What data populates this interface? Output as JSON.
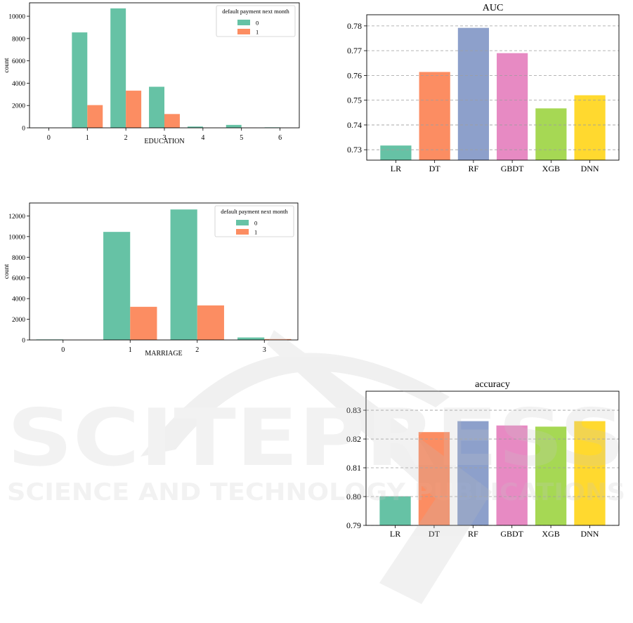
{
  "watermark": {
    "name": "SCITEPRESS",
    "tagline": "SCIENCE AND TECHNOLOGY PUBLICATIONS"
  },
  "chart_data": [
    {
      "id": "education",
      "type": "bar",
      "title": "",
      "xlabel": "EDUCATION",
      "ylabel": "count",
      "categories": [
        "0",
        "1",
        "2",
        "3",
        "4",
        "5",
        "6"
      ],
      "series": [
        {
          "name": "0",
          "color": "#66c2a5",
          "values": [
            14,
            8549,
            10700,
            3680,
            116,
            262,
            43
          ]
        },
        {
          "name": "1",
          "color": "#fc8d62",
          "values": [
            0,
            2036,
            3330,
            1237,
            7,
            18,
            8
          ]
        }
      ],
      "ylim": [
        0,
        11200
      ],
      "yticks": [
        0,
        2000,
        4000,
        6000,
        8000,
        10000
      ],
      "legend": {
        "title": "default payment next month",
        "placement": "top-right"
      }
    },
    {
      "id": "marriage",
      "type": "bar",
      "title": "",
      "xlabel": "MARRIAGE",
      "ylabel": "count",
      "categories": [
        "0",
        "1",
        "2",
        "3"
      ],
      "series": [
        {
          "name": "0",
          "color": "#66c2a5",
          "values": [
            49,
            10453,
            12623,
            239
          ]
        },
        {
          "name": "1",
          "color": "#fc8d62",
          "values": [
            5,
            3206,
            3341,
            84
          ]
        }
      ],
      "ylim": [
        0,
        13250
      ],
      "yticks": [
        0,
        2000,
        4000,
        6000,
        8000,
        10000,
        12000
      ],
      "legend": {
        "title": "default payment next month",
        "placement": "top-right"
      }
    },
    {
      "id": "auc",
      "type": "bar",
      "title": "AUC",
      "xlabel": "",
      "ylabel": "",
      "categories": [
        "LR",
        "DT",
        "RF",
        "GBDT",
        "XGB",
        "DNN"
      ],
      "colors": [
        "#66c2a5",
        "#fc8d62",
        "#8da0cb",
        "#e78ac3",
        "#a6d854",
        "#ffd92f"
      ],
      "values": [
        0.7317,
        0.7614,
        0.7792,
        0.769,
        0.7467,
        0.752
      ],
      "ylim": [
        0.7258,
        0.7845
      ],
      "yticks": [
        0.73,
        0.74,
        0.75,
        0.76,
        0.77,
        0.78
      ],
      "yticklabels": [
        "0.73",
        "0.74",
        "0.75",
        "0.76",
        "0.77",
        "0.78"
      ],
      "grid": "y-dashed"
    },
    {
      "id": "accuracy",
      "type": "bar",
      "title": "accuracy",
      "xlabel": "",
      "ylabel": "",
      "categories": [
        "LR",
        "DT",
        "RF",
        "GBDT",
        "XGB",
        "DNN"
      ],
      "colors": [
        "#66c2a5",
        "#fc8d62",
        "#8da0cb",
        "#e78ac3",
        "#a6d854",
        "#ffd92f"
      ],
      "values": [
        0.8001,
        0.8224,
        0.8262,
        0.8247,
        0.8243,
        0.8262
      ],
      "ylim": [
        0.79,
        0.8366
      ],
      "yticks": [
        0.79,
        0.8,
        0.81,
        0.82,
        0.83
      ],
      "yticklabels": [
        "0.79",
        "0.80",
        "0.81",
        "0.82",
        "0.83"
      ],
      "grid": "y-dashed"
    }
  ]
}
